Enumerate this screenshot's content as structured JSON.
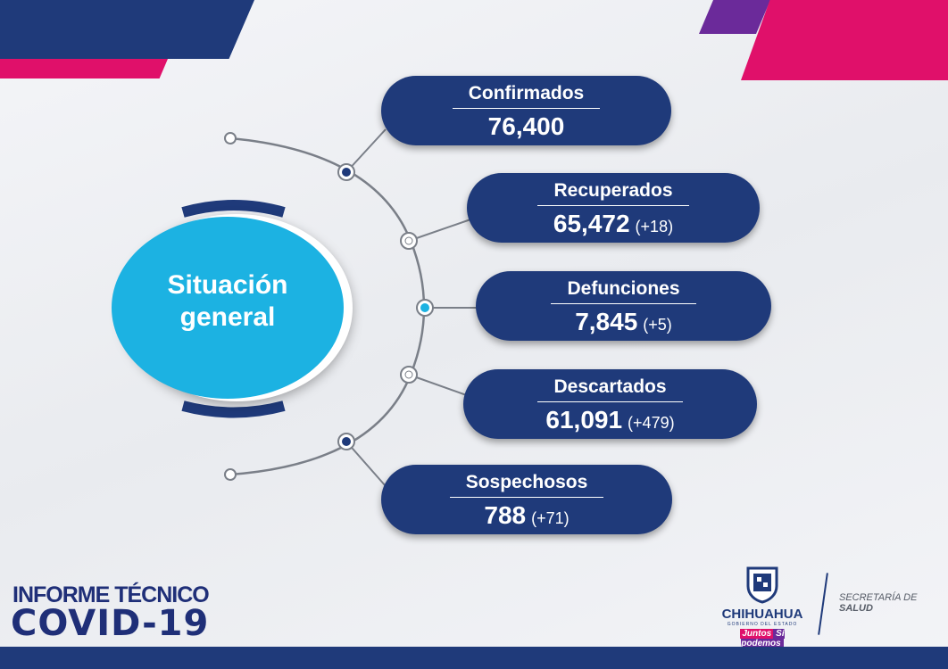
{
  "center": {
    "line1": "Situación",
    "line2": "general"
  },
  "stats": [
    {
      "label": "Confirmados",
      "value": "76,400",
      "delta": ""
    },
    {
      "label": "Recuperados",
      "value": "65,472",
      "delta": "(+18)"
    },
    {
      "label": "Defunciones",
      "value": "7,845",
      "delta": "(+5)"
    },
    {
      "label": "Descartados",
      "value": "61,091",
      "delta": "(+479)"
    },
    {
      "label": "Sospechosos",
      "value": "788",
      "delta": "(+71)"
    }
  ],
  "footer": {
    "title_line1": "INFORME TÉCNICO",
    "title_line2": "COVID-19",
    "logo_name": "CHIHUAHUA",
    "logo_sub": "GOBIERNO DEL ESTADO",
    "slogan1": "Juntos",
    "slogan2": "Sí podemos",
    "dept_line1": "SECRETARÍA DE",
    "dept_line2": "SALUD"
  },
  "colors": {
    "navy": "#1f3a7a",
    "cyan": "#1cb2e2",
    "pink": "#e0106a",
    "purple": "#6b2a9a"
  }
}
